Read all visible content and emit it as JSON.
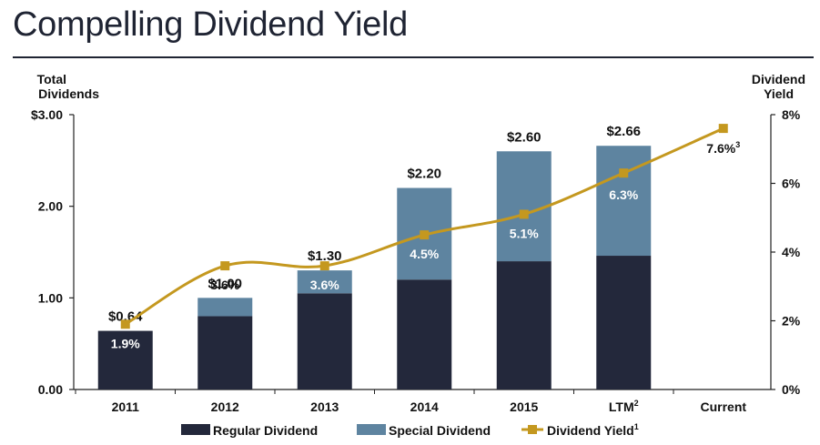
{
  "title": "Compelling Dividend Yield",
  "chart_data": {
    "type": "bar",
    "stacked": true,
    "categories": [
      "2011",
      "2012",
      "2013",
      "2014",
      "2015",
      "LTM",
      "Current"
    ],
    "category_superscripts": [
      "",
      "",
      "",
      "",
      "",
      "2",
      ""
    ],
    "series": [
      {
        "name": "Regular Dividend",
        "color": "#23283b",
        "values": [
          0.64,
          0.8,
          1.05,
          1.2,
          1.4,
          1.46,
          null
        ]
      },
      {
        "name": "Special Dividend",
        "color": "#5e84a0",
        "values": [
          0.0,
          0.2,
          0.25,
          1.0,
          1.2,
          1.2,
          null
        ]
      }
    ],
    "totals": [
      "$0.64",
      "$1.00",
      "$1.30",
      "$2.20",
      "$2.60",
      "$2.66",
      ""
    ],
    "line": {
      "name": "Dividend Yield",
      "name_superscript": "1",
      "color": "#c4981f",
      "axis": "right",
      "values": [
        1.9,
        3.6,
        3.6,
        4.5,
        5.1,
        6.3,
        7.6
      ],
      "labels": [
        "1.9%",
        "3.6%",
        "3.6%",
        "4.5%",
        "5.1%",
        "6.3%",
        "7.6%"
      ],
      "label_superscripts": [
        "",
        "",
        "",
        "",
        "",
        "",
        "3"
      ]
    },
    "left_axis": {
      "label_line1": "Total",
      "label_line2": "Dividends",
      "min": 0,
      "max": 3,
      "ticks": [
        0,
        1,
        2,
        3
      ],
      "tick_labels": [
        "0.00",
        "1.00",
        "2.00",
        "$3.00"
      ]
    },
    "right_axis": {
      "label_line1": "Dividend",
      "label_line2": "Yield",
      "min": 0,
      "max": 8,
      "ticks": [
        0,
        2,
        4,
        6,
        8
      ],
      "tick_labels": [
        "0%",
        "2%",
        "4%",
        "6%",
        "8%"
      ]
    },
    "legend": [
      {
        "label": "Regular Dividend",
        "kind": "box",
        "color": "#23283b",
        "sup": ""
      },
      {
        "label": "Special Dividend",
        "kind": "box",
        "color": "#5e84a0",
        "sup": ""
      },
      {
        "label": "Dividend Yield",
        "kind": "line",
        "color": "#c4981f",
        "sup": "1"
      }
    ]
  }
}
